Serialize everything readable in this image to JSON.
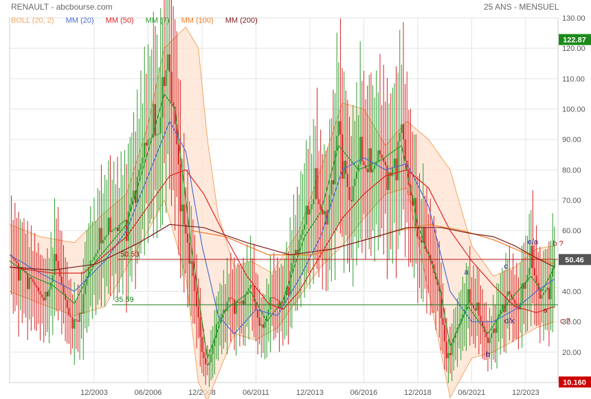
{
  "header": {
    "title": "RENAULT - abcbourse.com",
    "period": "25 ANS - MENSUEL"
  },
  "chart_data": {
    "type": "line",
    "subtype": "candlestick-with-indicators",
    "x_axis": {
      "tick_labels": [
        "12/2003",
        "06/2006",
        "12/2008",
        "06/2011",
        "12/2013",
        "06/2016",
        "12/2018",
        "06/2021",
        "12/2023"
      ],
      "range": [
        "2000-01",
        "2025-06"
      ]
    },
    "y_axis": {
      "position": "right",
      "range": [
        10,
        130
      ],
      "tick_labels": [
        "130.00",
        "120.00",
        "110.00",
        "100.00",
        "90.00",
        "80.00",
        "70.00",
        "60.00",
        "50.00",
        "40.00",
        "30.00",
        "20.00"
      ],
      "ticks": [
        130,
        120,
        110,
        100,
        90,
        80,
        70,
        60,
        50,
        40,
        30,
        20
      ]
    },
    "grid": true,
    "legend": [
      {
        "label": "BOLL (20, 2)",
        "color": "#f4a460"
      },
      {
        "label": "MM (20)",
        "color": "#4a6cd4"
      },
      {
        "label": "MM (50)",
        "color": "#e02020"
      },
      {
        "label": "MM (7)",
        "color": "#2a9a2a"
      },
      {
        "label": "MM (100)",
        "color": "#f07820"
      },
      {
        "label": "MM (200)",
        "color": "#7a1c1c"
      }
    ],
    "price_flags": [
      {
        "label": "122.87",
        "value": 122.87,
        "color": "#1a8a1a"
      },
      {
        "label": "50.46",
        "value": 50.46,
        "color": "#555555"
      },
      {
        "label": "10.160",
        "value": 10.16,
        "color": "#cc0000"
      }
    ],
    "horizontal_lines": [
      {
        "label": "50.53",
        "value": 50.53,
        "color": "#b01818",
        "start": "2005-01"
      },
      {
        "label": "35.59",
        "value": 35.59,
        "color": "#1a7a1a",
        "start": "2004-10"
      }
    ],
    "price_path": [
      {
        "x": "2000-01",
        "y": 52
      },
      {
        "x": "2000-07",
        "y": 48
      },
      {
        "x": "2001-01",
        "y": 44
      },
      {
        "x": "2001-09",
        "y": 36
      },
      {
        "x": "2002-03",
        "y": 50
      },
      {
        "x": "2002-10",
        "y": 32
      },
      {
        "x": "2003-03",
        "y": 30
      },
      {
        "x": "2003-09",
        "y": 48
      },
      {
        "x": "2004-06",
        "y": 58
      },
      {
        "x": "2005-06",
        "y": 64
      },
      {
        "x": "2006-01",
        "y": 80
      },
      {
        "x": "2006-06",
        "y": 90
      },
      {
        "x": "2006-12",
        "y": 92
      },
      {
        "x": "2007-05",
        "y": 118
      },
      {
        "x": "2007-09",
        "y": 95
      },
      {
        "x": "2008-02",
        "y": 62
      },
      {
        "x": "2008-06",
        "y": 50
      },
      {
        "x": "2008-12",
        "y": 20
      },
      {
        "x": "2009-03",
        "y": 14
      },
      {
        "x": "2009-09",
        "y": 30
      },
      {
        "x": "2010-03",
        "y": 38
      },
      {
        "x": "2010-09",
        "y": 36
      },
      {
        "x": "2011-03",
        "y": 42
      },
      {
        "x": "2011-09",
        "y": 26
      },
      {
        "x": "2012-03",
        "y": 38
      },
      {
        "x": "2012-09",
        "y": 36
      },
      {
        "x": "2013-03",
        "y": 52
      },
      {
        "x": "2013-09",
        "y": 62
      },
      {
        "x": "2014-03",
        "y": 72
      },
      {
        "x": "2014-09",
        "y": 62
      },
      {
        "x": "2015-04",
        "y": 96
      },
      {
        "x": "2015-10",
        "y": 70
      },
      {
        "x": "2016-04",
        "y": 84
      },
      {
        "x": "2016-09",
        "y": 78
      },
      {
        "x": "2017-03",
        "y": 85
      },
      {
        "x": "2017-09",
        "y": 78
      },
      {
        "x": "2018-03",
        "y": 95
      },
      {
        "x": "2018-07",
        "y": 75
      },
      {
        "x": "2018-12",
        "y": 58
      },
      {
        "x": "2019-06",
        "y": 52
      },
      {
        "x": "2019-12",
        "y": 40
      },
      {
        "x": "2020-04",
        "y": 18
      },
      {
        "x": "2020-10",
        "y": 28
      },
      {
        "x": "2021-04",
        "y": 37
      },
      {
        "x": "2021-10",
        "y": 32
      },
      {
        "x": "2022-03",
        "y": 23
      },
      {
        "x": "2022-08",
        "y": 31
      },
      {
        "x": "2023-02",
        "y": 40
      },
      {
        "x": "2023-08",
        "y": 34
      },
      {
        "x": "2024-03",
        "y": 50
      },
      {
        "x": "2024-08",
        "y": 38
      },
      {
        "x": "2025-01",
        "y": 42
      },
      {
        "x": "2025-04",
        "y": 50.46
      }
    ],
    "boll_upper_path": [
      {
        "x": "2000-01",
        "y": 62
      },
      {
        "x": "2001-06",
        "y": 58
      },
      {
        "x": "2003-01",
        "y": 56
      },
      {
        "x": "2004-06",
        "y": 66
      },
      {
        "x": "2005-06",
        "y": 72
      },
      {
        "x": "2006-06",
        "y": 95
      },
      {
        "x": "2007-03",
        "y": 120
      },
      {
        "x": "2008-03",
        "y": 127
      },
      {
        "x": "2008-10",
        "y": 120
      },
      {
        "x": "2009-03",
        "y": 90
      },
      {
        "x": "2009-09",
        "y": 65
      },
      {
        "x": "2010-06",
        "y": 48
      },
      {
        "x": "2011-03",
        "y": 50
      },
      {
        "x": "2012-03",
        "y": 46
      },
      {
        "x": "2013-06",
        "y": 60
      },
      {
        "x": "2014-06",
        "y": 80
      },
      {
        "x": "2015-06",
        "y": 102
      },
      {
        "x": "2016-06",
        "y": 100
      },
      {
        "x": "2017-06",
        "y": 88
      },
      {
        "x": "2018-06",
        "y": 96
      },
      {
        "x": "2019-06",
        "y": 90
      },
      {
        "x": "2020-06",
        "y": 80
      },
      {
        "x": "2021-06",
        "y": 55
      },
      {
        "x": "2022-06",
        "y": 45
      },
      {
        "x": "2023-06",
        "y": 48
      },
      {
        "x": "2024-06",
        "y": 54
      },
      {
        "x": "2025-04",
        "y": 55
      }
    ],
    "boll_lower_path": [
      {
        "x": "2000-01",
        "y": 40
      },
      {
        "x": "2001-06",
        "y": 36
      },
      {
        "x": "2003-01",
        "y": 32
      },
      {
        "x": "2004-06",
        "y": 35
      },
      {
        "x": "2005-06",
        "y": 48
      },
      {
        "x": "2006-06",
        "y": 60
      },
      {
        "x": "2007-03",
        "y": 70
      },
      {
        "x": "2008-03",
        "y": 45
      },
      {
        "x": "2008-10",
        "y": 10
      },
      {
        "x": "2009-03",
        "y": 4
      },
      {
        "x": "2010-06",
        "y": 26
      },
      {
        "x": "2011-06",
        "y": 24
      },
      {
        "x": "2012-06",
        "y": 28
      },
      {
        "x": "2013-06",
        "y": 38
      },
      {
        "x": "2014-06",
        "y": 48
      },
      {
        "x": "2015-06",
        "y": 55
      },
      {
        "x": "2016-06",
        "y": 64
      },
      {
        "x": "2017-06",
        "y": 72
      },
      {
        "x": "2018-06",
        "y": 74
      },
      {
        "x": "2019-06",
        "y": 40
      },
      {
        "x": "2020-06",
        "y": 5
      },
      {
        "x": "2021-06",
        "y": 18
      },
      {
        "x": "2022-06",
        "y": 20
      },
      {
        "x": "2023-06",
        "y": 24
      },
      {
        "x": "2024-06",
        "y": 28
      },
      {
        "x": "2025-04",
        "y": 30
      }
    ],
    "series": [
      {
        "name": "MM (7)",
        "color": "#2a9a2a",
        "points": [
          {
            "x": "2000-01",
            "y": 50
          },
          {
            "x": "2001-01",
            "y": 45
          },
          {
            "x": "2002-01",
            "y": 42
          },
          {
            "x": "2003-01",
            "y": 36
          },
          {
            "x": "2004-01",
            "y": 50
          },
          {
            "x": "2005-06",
            "y": 62
          },
          {
            "x": "2006-06",
            "y": 86
          },
          {
            "x": "2007-03",
            "y": 105
          },
          {
            "x": "2007-09",
            "y": 100
          },
          {
            "x": "2008-06",
            "y": 55
          },
          {
            "x": "2009-03",
            "y": 18
          },
          {
            "x": "2010-01",
            "y": 34
          },
          {
            "x": "2011-03",
            "y": 40
          },
          {
            "x": "2011-12",
            "y": 30
          },
          {
            "x": "2012-09",
            "y": 37
          },
          {
            "x": "2013-09",
            "y": 58
          },
          {
            "x": "2014-06",
            "y": 66
          },
          {
            "x": "2015-04",
            "y": 88
          },
          {
            "x": "2016-03",
            "y": 80
          },
          {
            "x": "2017-03",
            "y": 83
          },
          {
            "x": "2018-03",
            "y": 88
          },
          {
            "x": "2018-12",
            "y": 62
          },
          {
            "x": "2019-12",
            "y": 42
          },
          {
            "x": "2020-06",
            "y": 22
          },
          {
            "x": "2021-04",
            "y": 35
          },
          {
            "x": "2022-03",
            "y": 26
          },
          {
            "x": "2023-03",
            "y": 37
          },
          {
            "x": "2024-03",
            "y": 45
          },
          {
            "x": "2024-09",
            "y": 40
          },
          {
            "x": "2025-04",
            "y": 48
          }
        ]
      },
      {
        "name": "MM (20)",
        "color": "#4a6cd4",
        "points": [
          {
            "x": "2000-01",
            "y": 52
          },
          {
            "x": "2001-06",
            "y": 46
          },
          {
            "x": "2003-01",
            "y": 40
          },
          {
            "x": "2004-06",
            "y": 50
          },
          {
            "x": "2005-06",
            "y": 60
          },
          {
            "x": "2006-06",
            "y": 78
          },
          {
            "x": "2007-06",
            "y": 96
          },
          {
            "x": "2008-03",
            "y": 86
          },
          {
            "x": "2008-12",
            "y": 55
          },
          {
            "x": "2009-09",
            "y": 32
          },
          {
            "x": "2010-06",
            "y": 26
          },
          {
            "x": "2011-06",
            "y": 34
          },
          {
            "x": "2012-06",
            "y": 32
          },
          {
            "x": "2013-06",
            "y": 44
          },
          {
            "x": "2014-06",
            "y": 58
          },
          {
            "x": "2015-06",
            "y": 80
          },
          {
            "x": "2016-06",
            "y": 84
          },
          {
            "x": "2017-06",
            "y": 80
          },
          {
            "x": "2018-06",
            "y": 82
          },
          {
            "x": "2019-06",
            "y": 68
          },
          {
            "x": "2020-06",
            "y": 40
          },
          {
            "x": "2021-06",
            "y": 30
          },
          {
            "x": "2022-06",
            "y": 30
          },
          {
            "x": "2023-06",
            "y": 34
          },
          {
            "x": "2024-06",
            "y": 40
          },
          {
            "x": "2025-04",
            "y": 44
          }
        ]
      },
      {
        "name": "MM (50)",
        "color": "#e02020",
        "points": [
          {
            "x": "2000-01",
            "y": 48
          },
          {
            "x": "2002-01",
            "y": 46
          },
          {
            "x": "2003-06",
            "y": 46
          },
          {
            "x": "2004-06",
            "y": 52
          },
          {
            "x": "2005-06",
            "y": 58
          },
          {
            "x": "2006-06",
            "y": 68
          },
          {
            "x": "2007-06",
            "y": 78
          },
          {
            "x": "2008-03",
            "y": 80
          },
          {
            "x": "2009-01",
            "y": 72
          },
          {
            "x": "2010-01",
            "y": 58
          },
          {
            "x": "2011-01",
            "y": 45
          },
          {
            "x": "2012-01",
            "y": 36
          },
          {
            "x": "2012-09",
            "y": 34
          },
          {
            "x": "2013-06",
            "y": 40
          },
          {
            "x": "2014-06",
            "y": 52
          },
          {
            "x": "2015-06",
            "y": 64
          },
          {
            "x": "2016-06",
            "y": 72
          },
          {
            "x": "2017-06",
            "y": 78
          },
          {
            "x": "2018-06",
            "y": 80
          },
          {
            "x": "2019-06",
            "y": 74
          },
          {
            "x": "2020-06",
            "y": 60
          },
          {
            "x": "2021-06",
            "y": 50
          },
          {
            "x": "2022-06",
            "y": 42
          },
          {
            "x": "2023-06",
            "y": 35
          },
          {
            "x": "2024-06",
            "y": 33
          },
          {
            "x": "2025-04",
            "y": 35
          }
        ]
      },
      {
        "name": "MM (100)",
        "color": "#f07820",
        "points": [
          {
            "x": "2008-06",
            "y": 60
          },
          {
            "x": "2010-01",
            "y": 58
          },
          {
            "x": "2012-01",
            "y": 52
          },
          {
            "x": "2014-01",
            "y": 52
          },
          {
            "x": "2016-01",
            "y": 56
          },
          {
            "x": "2018-01",
            "y": 60
          },
          {
            "x": "2019-06",
            "y": 62
          },
          {
            "x": "2021-01",
            "y": 60
          },
          {
            "x": "2022-06",
            "y": 57
          },
          {
            "x": "2023-06",
            "y": 54
          },
          {
            "x": "2024-06",
            "y": 51
          },
          {
            "x": "2025-04",
            "y": 49
          }
        ]
      },
      {
        "name": "MM (200)",
        "color": "#7a1c1c",
        "points": [
          {
            "x": "2000-01",
            "y": 48
          },
          {
            "x": "2002-01",
            "y": 47
          },
          {
            "x": "2004-01",
            "y": 49
          },
          {
            "x": "2006-01",
            "y": 56
          },
          {
            "x": "2007-06",
            "y": 62
          },
          {
            "x": "2009-01",
            "y": 61
          },
          {
            "x": "2011-01",
            "y": 56
          },
          {
            "x": "2013-01",
            "y": 52
          },
          {
            "x": "2015-01",
            "y": 54
          },
          {
            "x": "2017-01",
            "y": 58
          },
          {
            "x": "2018-06",
            "y": 61
          },
          {
            "x": "2020-01",
            "y": 61
          },
          {
            "x": "2021-06",
            "y": 59
          },
          {
            "x": "2022-06",
            "y": 58
          },
          {
            "x": "2023-06",
            "y": 55
          },
          {
            "x": "2024-06",
            "y": 51
          },
          {
            "x": "2025-04",
            "y": 48
          }
        ]
      }
    ],
    "annotations": [
      {
        "text": "a",
        "x": "2021-03",
        "y": 45.5,
        "color": "#2a2a8a"
      },
      {
        "text": "b",
        "x": "2022-03",
        "y": 18.5,
        "color": "#2a2a8a"
      },
      {
        "text": "c",
        "x": "2023-01",
        "y": 47.5,
        "color": "#2a2a8a"
      },
      {
        "text": "d/x",
        "x": "2023-03",
        "y": 29.5,
        "color": "#2a2a8a"
      },
      {
        "text": "e/a",
        "x": "2024-04",
        "y": 55.5,
        "color": "#2a2a8a"
      },
      {
        "text": "b ?",
        "x": "2025-06",
        "y": 55,
        "color": "#b01818"
      },
      {
        "text": "a",
        "x": "2024-11",
        "y": 33,
        "color": "#b01818"
      },
      {
        "text": "c ?",
        "x": "2025-10",
        "y": 29.5,
        "color": "#b01818"
      }
    ]
  }
}
